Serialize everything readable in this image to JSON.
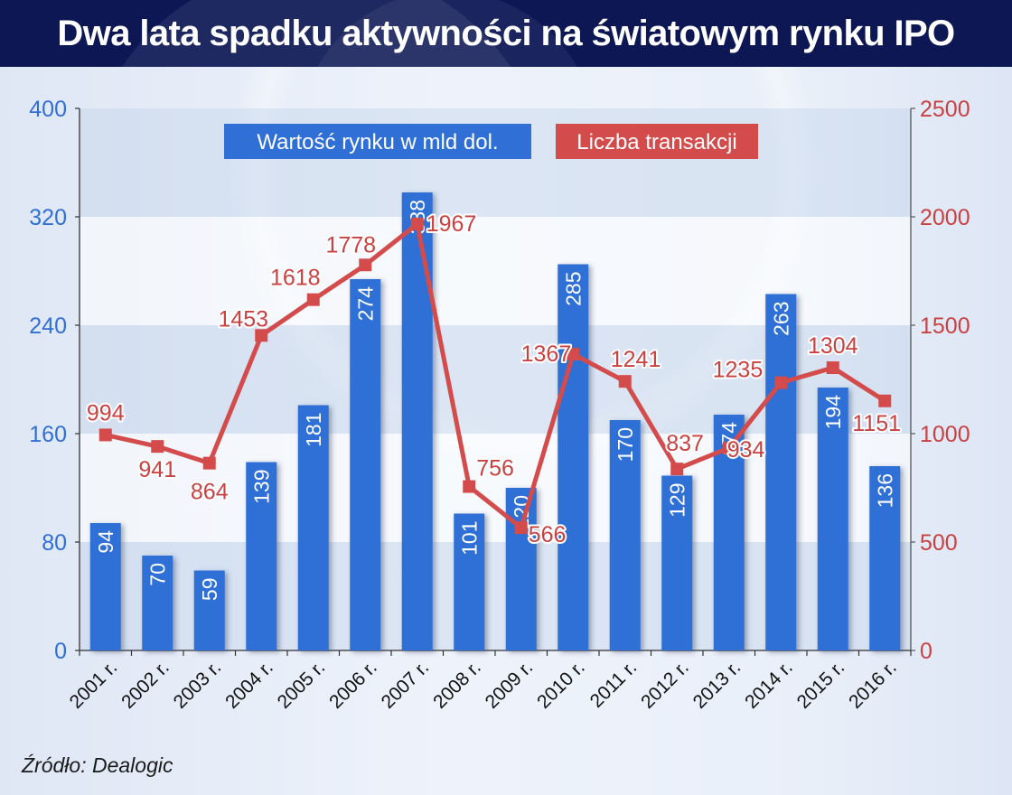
{
  "title": "Dwa lata spadku aktywności na światowym rynku IPO",
  "source": "Źródło: Dealogic",
  "colors": {
    "title_bg": "#0c1754",
    "bar": "#2f6fd6",
    "line": "#d34b4b",
    "left_axis_text": "#2f6fd6",
    "right_axis_text": "#c94141"
  },
  "legend": [
    {
      "label": "Wartość rynku w mld dol.",
      "color": "#2f6fd6"
    },
    {
      "label": "Liczba transakcji",
      "color": "#d34b4b"
    }
  ],
  "chart_data": {
    "type": "bar+line",
    "title": "Dwa lata spadku aktywności na światowym rynku IPO",
    "categories": [
      "2001 r.",
      "2002 r.",
      "2003 r.",
      "2004 r.",
      "2005 r.",
      "2006 r.",
      "2007 r.",
      "2008 r.",
      "2009 r.",
      "2010 r.",
      "2011 r.",
      "2012 r.",
      "2013 r.",
      "2014 r.",
      "2015 r.",
      "2016 r."
    ],
    "series": [
      {
        "name": "Wartość rynku w mld dol.",
        "type": "bar",
        "axis": "left",
        "values": [
          94,
          70,
          59,
          139,
          181,
          274,
          338,
          101,
          120,
          285,
          170,
          129,
          174,
          263,
          194,
          136
        ]
      },
      {
        "name": "Liczba transakcji",
        "type": "line",
        "axis": "right",
        "values": [
          994,
          941,
          864,
          1453,
          1618,
          1778,
          1967,
          756,
          566,
          1367,
          1241,
          837,
          934,
          1235,
          1304,
          1151
        ]
      }
    ],
    "left_axis": {
      "ylim": [
        0,
        400
      ],
      "ticks": [
        0,
        80,
        160,
        240,
        320,
        400
      ]
    },
    "right_axis": {
      "ylim": [
        0,
        2500
      ],
      "ticks": [
        0,
        500,
        1000,
        1500,
        2000,
        2500
      ]
    },
    "xlabel": "",
    "ylabel": "",
    "legend_position": "top-inside",
    "grid": "alternating horizontal bands",
    "source": "Źródło: Dealogic"
  }
}
